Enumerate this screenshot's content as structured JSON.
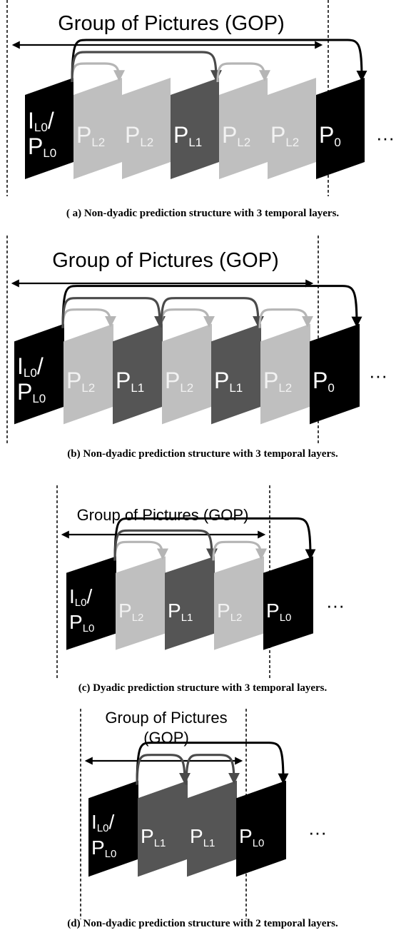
{
  "colors": {
    "black": "#000000",
    "dark": "#555555",
    "light": "#bfbfbf",
    "arrow_light": "#b5b5b5",
    "arrow_dark": "#4a4a4a",
    "text_on_dark": "#ffffff",
    "text_on_light": "#f2f2f2"
  },
  "ellipsis": "···",
  "panels": [
    {
      "id": "a",
      "gop_label": [
        "Group of Pictures (GOP)"
      ],
      "caption": "( a) Non-dyadic prediction structure with 3 temporal layers.",
      "frames": [
        {
          "main": "I",
          "sub": "L0",
          "main2": "P",
          "sub2": "L0",
          "slash": "/",
          "color": "black"
        },
        {
          "main": "P",
          "sub": "L2",
          "color": "light"
        },
        {
          "main": "P",
          "sub": "L2",
          "color": "light"
        },
        {
          "main": "P",
          "sub": "L1",
          "color": "dark"
        },
        {
          "main": "P",
          "sub": "L2",
          "color": "light"
        },
        {
          "main": "P",
          "sub": "L2",
          "color": "light"
        },
        {
          "main": "P",
          "sub": "0",
          "color": "black"
        }
      ]
    },
    {
      "id": "b",
      "gop_label": [
        "Group of Pictures (GOP)"
      ],
      "caption": "(b) Non-dyadic prediction structure with 3 temporal layers.",
      "frames": [
        {
          "main": "I",
          "sub": "L0",
          "main2": "P",
          "sub2": "L0",
          "slash": "/",
          "color": "black"
        },
        {
          "main": "P",
          "sub": "L2",
          "color": "light"
        },
        {
          "main": "P",
          "sub": "L1",
          "color": "dark"
        },
        {
          "main": "P",
          "sub": "L2",
          "color": "light"
        },
        {
          "main": "P",
          "sub": "L1",
          "color": "dark"
        },
        {
          "main": "P",
          "sub": "L2",
          "color": "light"
        },
        {
          "main": "P",
          "sub": "0",
          "color": "black"
        }
      ]
    },
    {
      "id": "c",
      "gop_label": [
        "Group of Pictures (GOP)"
      ],
      "caption": "(c) Dyadic  prediction structure with 3 temporal layers.",
      "frames": [
        {
          "main": "I",
          "sub": "L0",
          "main2": "P",
          "sub2": "L0",
          "slash": "/",
          "color": "black"
        },
        {
          "main": "P",
          "sub": "L2",
          "color": "light"
        },
        {
          "main": "P",
          "sub": "L1",
          "color": "dark"
        },
        {
          "main": "P",
          "sub": "L2",
          "color": "light"
        },
        {
          "main": "P",
          "sub": "L0",
          "color": "black"
        }
      ]
    },
    {
      "id": "d",
      "gop_label": [
        "Group of Pictures",
        "(GOP)"
      ],
      "caption": "(d) Non-dyadic prediction structure with 2 temporal layers.",
      "frames": [
        {
          "main": "I",
          "sub": "L0",
          "main2": "P",
          "sub2": "L0",
          "slash": "/",
          "color": "black"
        },
        {
          "main": "P",
          "sub": "L1",
          "color": "dark"
        },
        {
          "main": "P",
          "sub": "L1",
          "color": "dark"
        },
        {
          "main": "P",
          "sub": "L0",
          "color": "black"
        }
      ]
    }
  ]
}
